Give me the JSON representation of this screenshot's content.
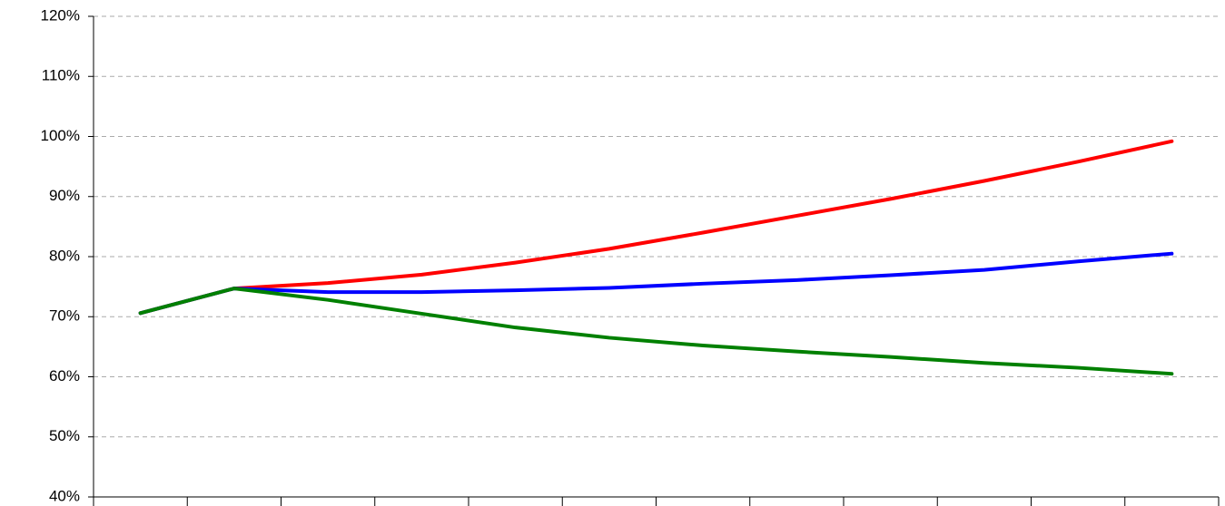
{
  "chart_data": {
    "type": "line",
    "categories": [
      null,
      null,
      null,
      null,
      null,
      null,
      null,
      null,
      null,
      null,
      null,
      null
    ],
    "series": [
      {
        "color": "#ff0000",
        "values": [
          70.6,
          74.7,
          75.6,
          77.0,
          79.0,
          81.3,
          84.0,
          86.8,
          89.6,
          92.6,
          95.8,
          99.2
        ]
      },
      {
        "color": "#0000ff",
        "values": [
          70.6,
          74.7,
          74.1,
          74.1,
          74.4,
          74.8,
          75.5,
          76.1,
          76.9,
          77.8,
          79.2,
          80.5
        ]
      },
      {
        "color": "#008000",
        "values": [
          70.6,
          74.7,
          72.8,
          70.5,
          68.2,
          66.5,
          65.2,
          64.2,
          63.3,
          62.3,
          61.5,
          60.5
        ]
      }
    ],
    "ylim": [
      40,
      120
    ],
    "yticks": [
      {
        "value": 40,
        "label": "40%"
      },
      {
        "value": 50,
        "label": "50%"
      },
      {
        "value": 60,
        "label": "60%"
      },
      {
        "value": 70,
        "label": "70%"
      },
      {
        "value": 80,
        "label": "80%"
      },
      {
        "value": 90,
        "label": "90%"
      },
      {
        "value": 100,
        "label": "100%"
      },
      {
        "value": 110,
        "label": "110%"
      },
      {
        "value": 120,
        "label": "120%"
      }
    ],
    "grid": true
  }
}
